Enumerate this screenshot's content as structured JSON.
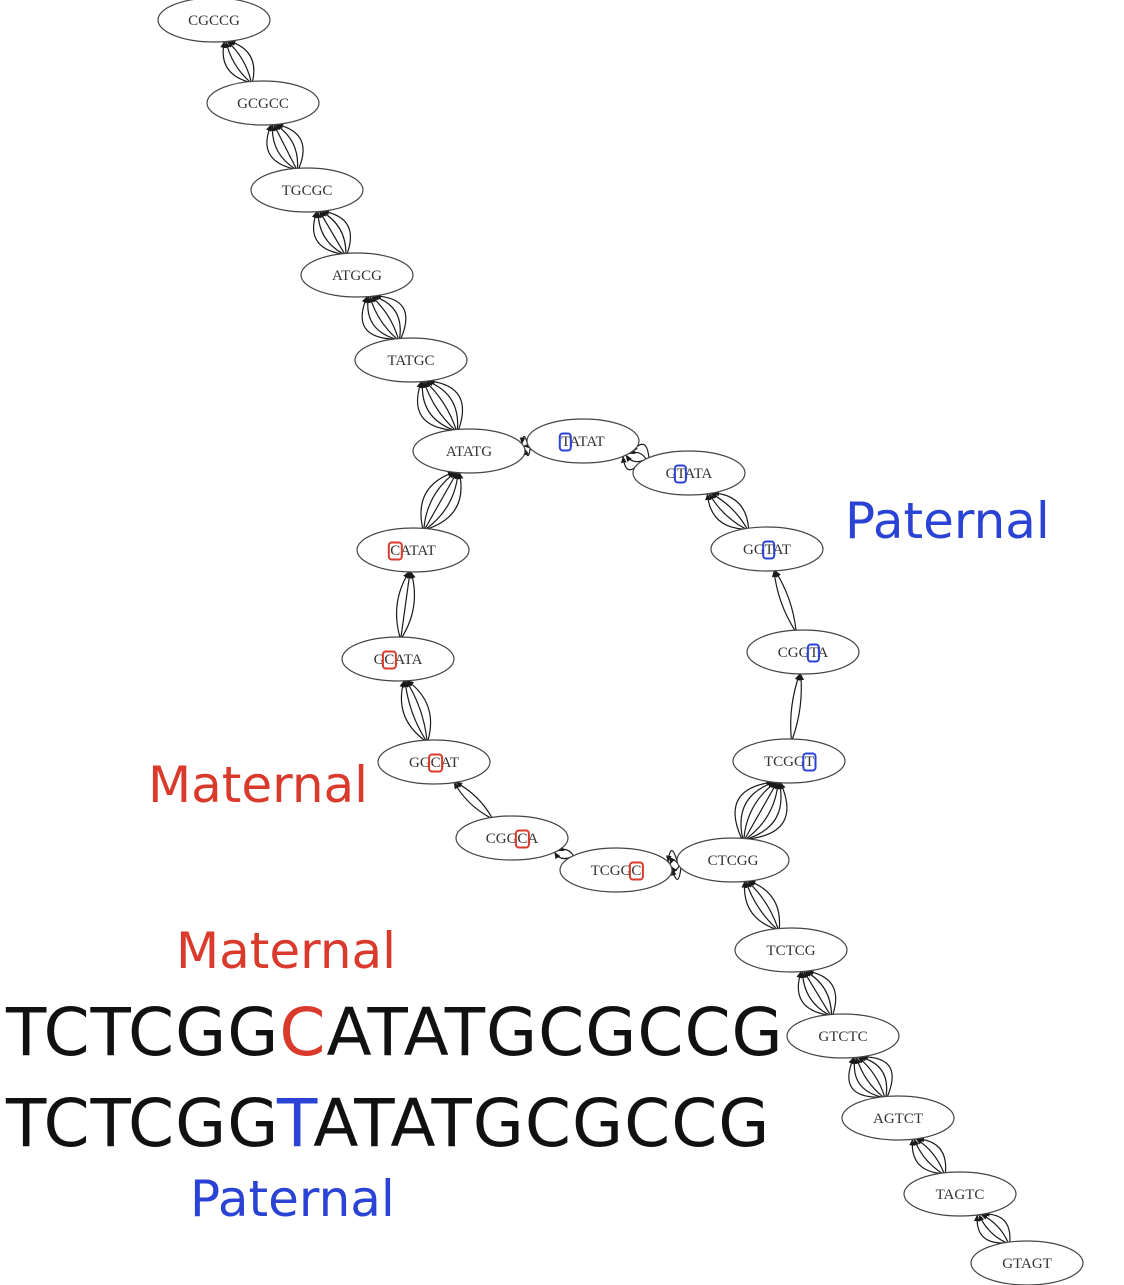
{
  "colors": {
    "maternal": "#d93a2b",
    "paternal": "#2a43d4",
    "sequence": "#111111",
    "edge": "#1a1a1a",
    "node_stroke": "#444444"
  },
  "graph": {
    "nodes": [
      {
        "id": "n1",
        "text": "CGCCG",
        "highlight": null
      },
      {
        "id": "n2",
        "text": "GCGCC",
        "highlight": null
      },
      {
        "id": "n3",
        "text": "TGCGC",
        "highlight": null
      },
      {
        "id": "n4",
        "text": "ATGCG",
        "highlight": null
      },
      {
        "id": "n5",
        "text": "TATGC",
        "highlight": null
      },
      {
        "id": "n6",
        "text": "ATATG",
        "highlight": null
      },
      {
        "id": "n7",
        "text": "TATAT",
        "highlight": {
          "index": 0,
          "color": "paternal"
        }
      },
      {
        "id": "n8",
        "text": "GTATA",
        "highlight": {
          "index": 1,
          "color": "paternal"
        }
      },
      {
        "id": "n9",
        "text": "GGTAT",
        "highlight": {
          "index": 2,
          "color": "paternal"
        }
      },
      {
        "id": "n10",
        "text": "CGGTA",
        "highlight": {
          "index": 3,
          "color": "paternal"
        }
      },
      {
        "id": "n11",
        "text": "TCGGT",
        "highlight": {
          "index": 4,
          "color": "paternal"
        }
      },
      {
        "id": "n12",
        "text": "CATAT",
        "highlight": {
          "index": 0,
          "color": "maternal"
        }
      },
      {
        "id": "n13",
        "text": "GCATA",
        "highlight": {
          "index": 1,
          "color": "maternal"
        }
      },
      {
        "id": "n14",
        "text": "GGCAT",
        "highlight": {
          "index": 2,
          "color": "maternal"
        }
      },
      {
        "id": "n15",
        "text": "CGGCA",
        "highlight": {
          "index": 3,
          "color": "maternal"
        }
      },
      {
        "id": "n16",
        "text": "TCGGC",
        "highlight": {
          "index": 4,
          "color": "maternal"
        }
      },
      {
        "id": "n17",
        "text": "CTCGG",
        "highlight": null
      },
      {
        "id": "n18",
        "text": "TCTCG",
        "highlight": null
      },
      {
        "id": "n19",
        "text": "GTCTC",
        "highlight": null
      },
      {
        "id": "n20",
        "text": "AGTCT",
        "highlight": null
      },
      {
        "id": "n21",
        "text": "TAGTC",
        "highlight": null
      },
      {
        "id": "n22",
        "text": "GTAGT",
        "highlight": null
      }
    ],
    "edges": [
      {
        "from": "n22",
        "to": "n21",
        "count": 4
      },
      {
        "from": "n21",
        "to": "n20",
        "count": 4
      },
      {
        "from": "n20",
        "to": "n19",
        "count": 6
      },
      {
        "from": "n19",
        "to": "n18",
        "count": 5
      },
      {
        "from": "n18",
        "to": "n17",
        "count": 4
      },
      {
        "from": "n17",
        "to": "n16",
        "count": 4
      },
      {
        "from": "n16",
        "to": "n15",
        "count": 2
      },
      {
        "from": "n15",
        "to": "n14",
        "count": 2
      },
      {
        "from": "n14",
        "to": "n13",
        "count": 4
      },
      {
        "from": "n13",
        "to": "n12",
        "count": 3
      },
      {
        "from": "n12",
        "to": "n6",
        "count": 5
      },
      {
        "from": "n17",
        "to": "n11",
        "count": 7
      },
      {
        "from": "n11",
        "to": "n10",
        "count": 2
      },
      {
        "from": "n10",
        "to": "n9",
        "count": 2
      },
      {
        "from": "n9",
        "to": "n8",
        "count": 4
      },
      {
        "from": "n8",
        "to": "n7",
        "count": 4
      },
      {
        "from": "n7",
        "to": "n6",
        "count": 3
      },
      {
        "from": "n6",
        "to": "n5",
        "count": 6
      },
      {
        "from": "n5",
        "to": "n4",
        "count": 6
      },
      {
        "from": "n4",
        "to": "n3",
        "count": 5
      },
      {
        "from": "n3",
        "to": "n2",
        "count": 5
      },
      {
        "from": "n2",
        "to": "n1",
        "count": 4
      }
    ]
  },
  "labels": {
    "paternal_graph": "Paternal",
    "maternal_graph": "Maternal",
    "maternal_sequence": "Maternal",
    "paternal_sequence": "Paternal"
  },
  "sequences": {
    "maternal": {
      "prefix": "TCTCGG",
      "variant": "C",
      "suffix": "ATATGCGCCG"
    },
    "paternal": {
      "prefix": "TCTCGG",
      "variant": "T",
      "suffix": "ATATGCGCCG"
    }
  }
}
